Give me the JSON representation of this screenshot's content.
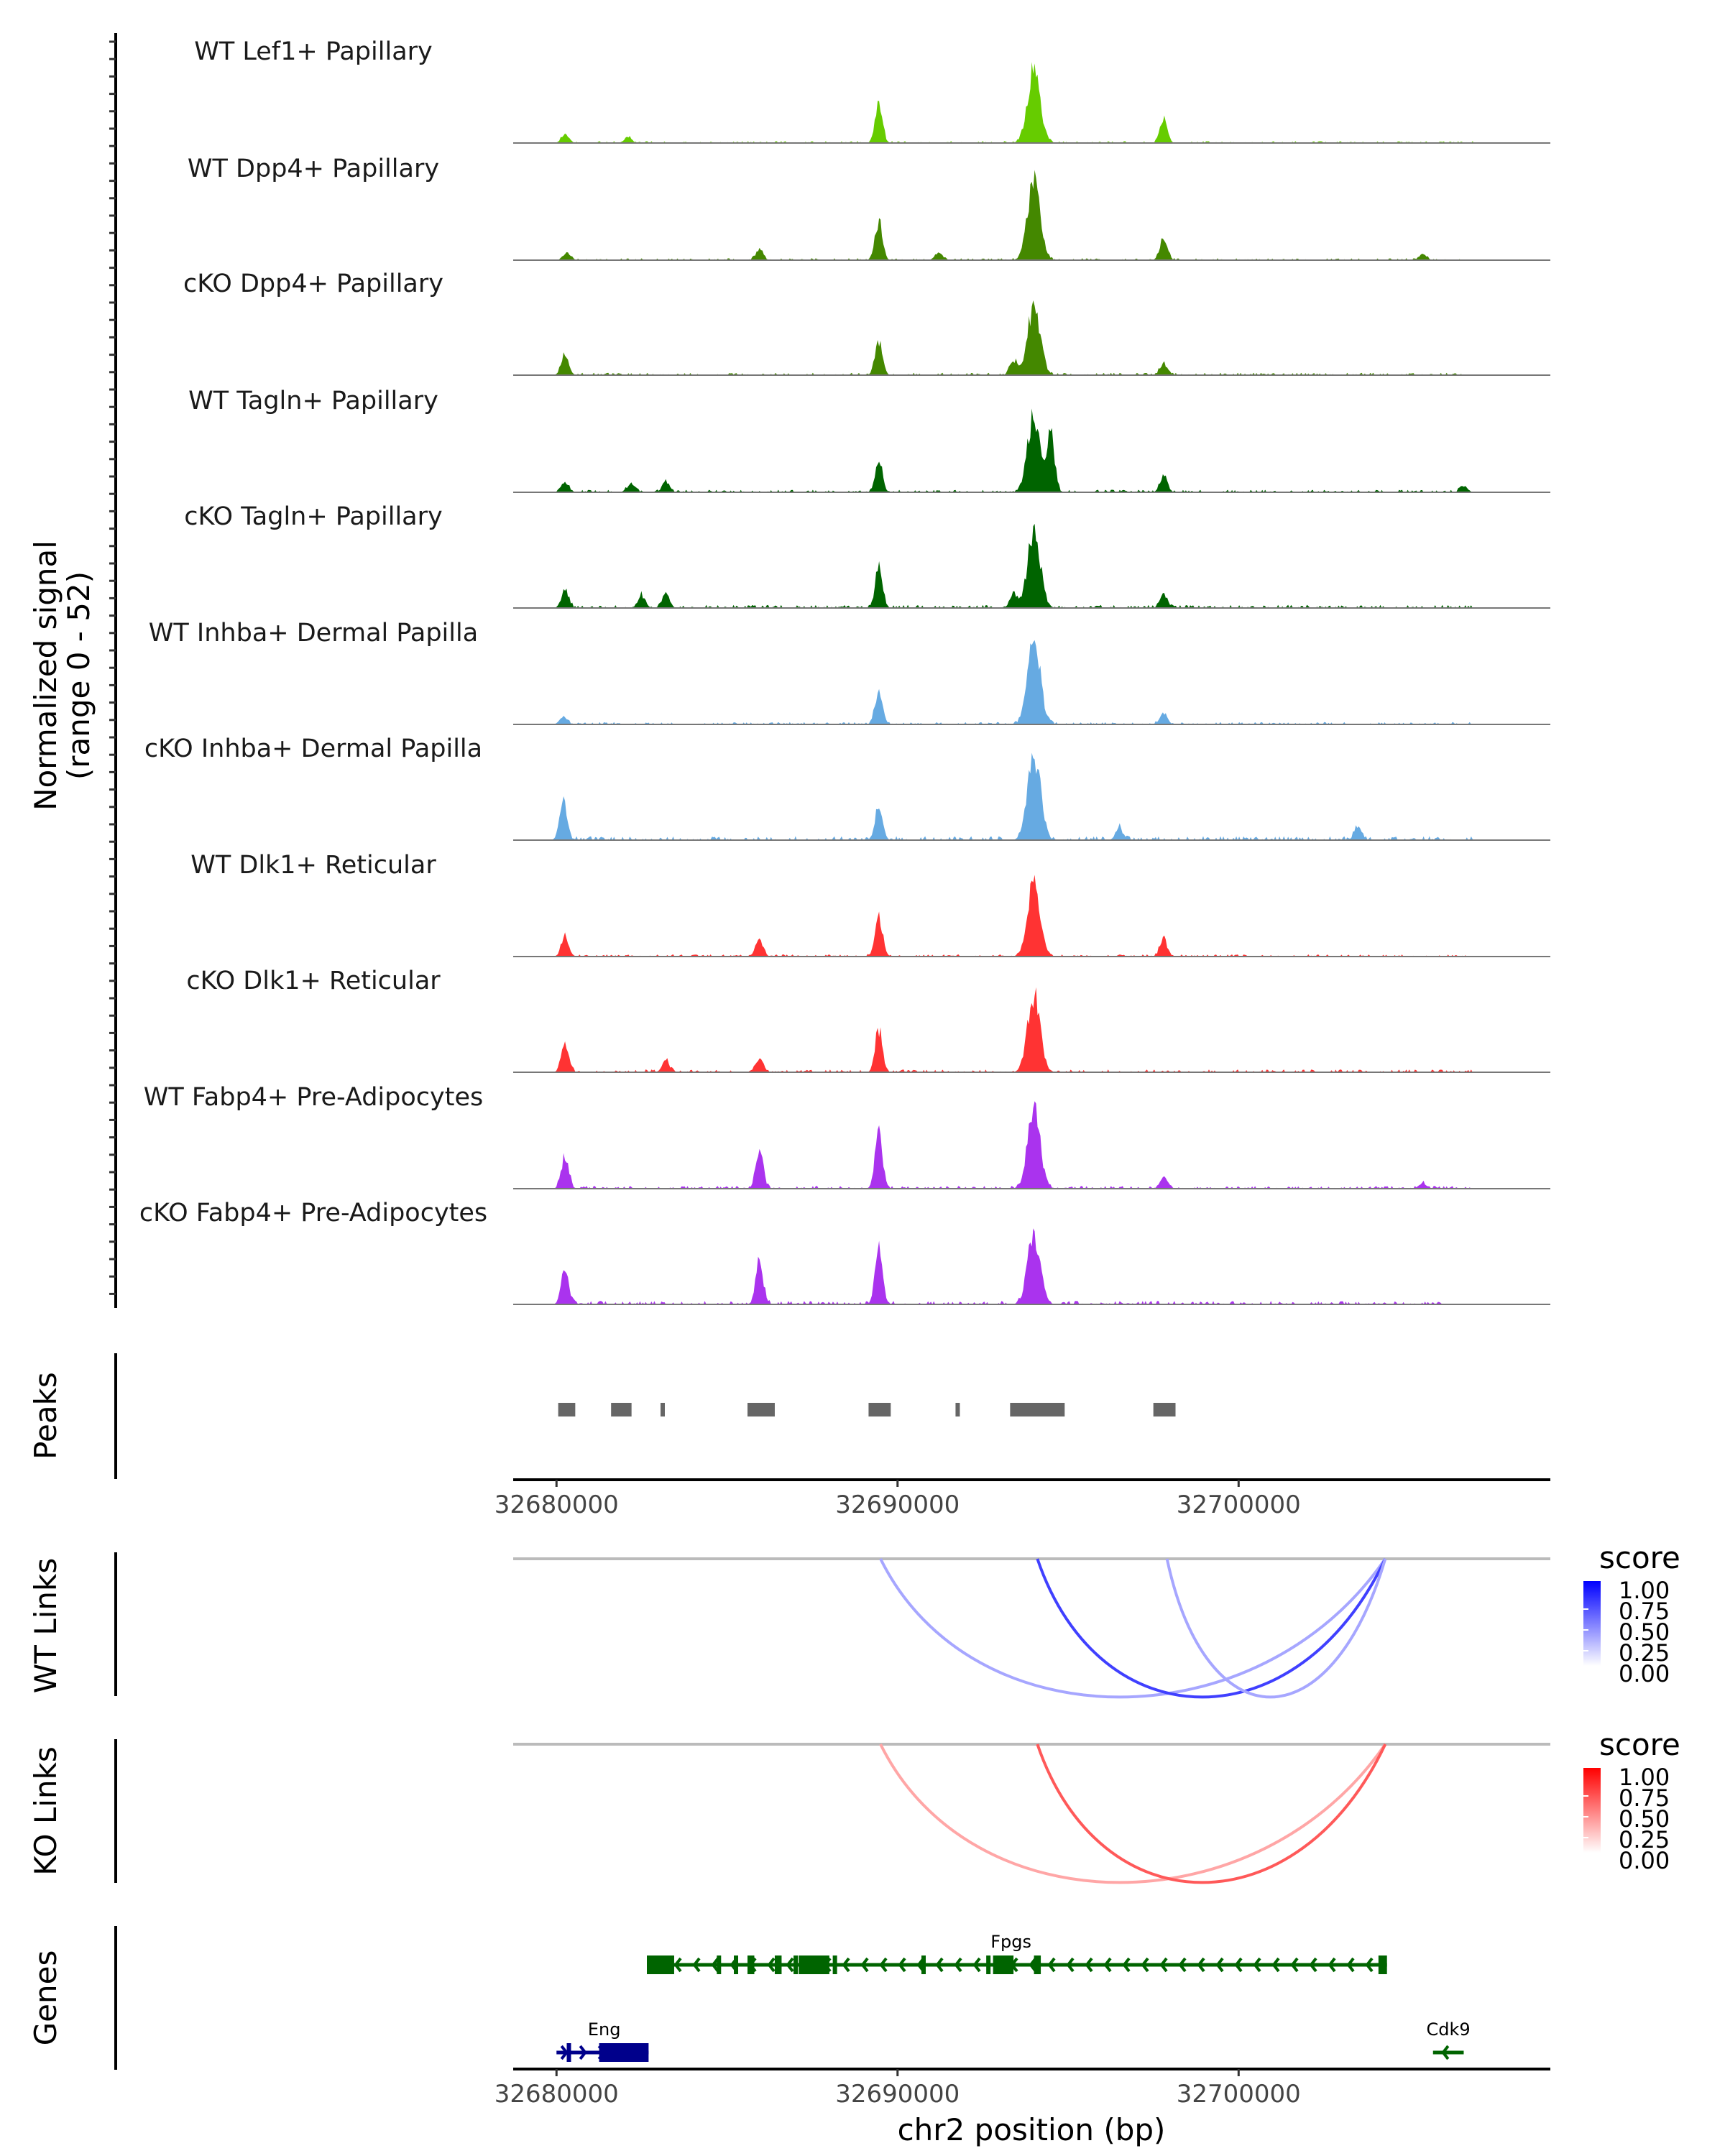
{
  "chart_data": {
    "type": "area",
    "title": "",
    "ylabel": "Normalized signal\n(range 0 - 52)",
    "ylabel_lines": [
      "Normalized signal",
      "(range 0 - 52)"
    ],
    "xlabel": "chr2 position (bp)",
    "xlim": [
      32678730,
      32709140
    ],
    "ylim": [
      0,
      52
    ],
    "x_ticks": [
      32680000,
      32690000,
      32700000
    ],
    "x_tick_labels": [
      "32680000",
      "32690000",
      "32700000"
    ],
    "coverage_tracks": [
      {
        "name": "WT Lef1+ Papillary",
        "color": "#66CC00",
        "peaks": [
          [
            32680250,
            6
          ],
          [
            32682100,
            4
          ],
          [
            32689450,
            26
          ],
          [
            32694000,
            50
          ],
          [
            32697800,
            16
          ]
        ],
        "noise": 1.2
      },
      {
        "name": "WT Dpp4+ Papillary",
        "color": "#448800",
        "peaks": [
          [
            32680300,
            5
          ],
          [
            32685950,
            7
          ],
          [
            32689450,
            26
          ],
          [
            32691200,
            5
          ],
          [
            32694000,
            52
          ],
          [
            32697800,
            16
          ],
          [
            32705400,
            4
          ]
        ],
        "noise": 1.2
      },
      {
        "name": "cKO Dpp4+ Papillary",
        "color": "#448800",
        "peaks": [
          [
            32680250,
            14
          ],
          [
            32689450,
            22
          ],
          [
            32693400,
            10
          ],
          [
            32694000,
            48
          ],
          [
            32697800,
            8
          ]
        ],
        "noise": 1.5
      },
      {
        "name": "WT Tagln+ Papillary",
        "color": "#006400",
        "peaks": [
          [
            32680250,
            7
          ],
          [
            32682200,
            6
          ],
          [
            32683200,
            7
          ],
          [
            32689450,
            20
          ],
          [
            32694000,
            52
          ],
          [
            32694500,
            40
          ],
          [
            32697800,
            11
          ],
          [
            32706600,
            4
          ]
        ],
        "noise": 1.6
      },
      {
        "name": "cKO Tagln+ Papillary",
        "color": "#006400",
        "peaks": [
          [
            32680250,
            12
          ],
          [
            32682500,
            8
          ],
          [
            32683200,
            10
          ],
          [
            32689450,
            26
          ],
          [
            32693400,
            10
          ],
          [
            32694000,
            52
          ],
          [
            32697800,
            10
          ]
        ],
        "noise": 2.0
      },
      {
        "name": "WT Inhba+ Dermal Papilla",
        "color": "#66AAE2",
        "peaks": [
          [
            32680200,
            5
          ],
          [
            32689450,
            24
          ],
          [
            32694000,
            58
          ],
          [
            32697800,
            8
          ]
        ],
        "noise": 1.5
      },
      {
        "name": "cKO Inhba+ Dermal Papilla",
        "color": "#66AAE2",
        "peaks": [
          [
            32680200,
            28
          ],
          [
            32689450,
            26
          ],
          [
            32694000,
            58
          ],
          [
            32696500,
            8
          ],
          [
            32703500,
            10
          ]
        ],
        "noise": 2.5
      },
      {
        "name": "WT Dlk1+ Reticular",
        "color": "#FF3333",
        "peaks": [
          [
            32680250,
            14
          ],
          [
            32685950,
            12
          ],
          [
            32689450,
            28
          ],
          [
            32694000,
            50
          ],
          [
            32697800,
            12
          ]
        ],
        "noise": 1.4
      },
      {
        "name": "cKO Dlk1+ Reticular",
        "color": "#FF3333",
        "peaks": [
          [
            32680250,
            18
          ],
          [
            32683200,
            8
          ],
          [
            32685950,
            10
          ],
          [
            32689450,
            28
          ],
          [
            32694000,
            52
          ]
        ],
        "noise": 1.8
      },
      {
        "name": "WT Fabp4+ Pre-Adipocytes",
        "color": "#AA33EE",
        "peaks": [
          [
            32680250,
            22
          ],
          [
            32685950,
            28
          ],
          [
            32689450,
            40
          ],
          [
            32694000,
            52
          ],
          [
            32697800,
            8
          ],
          [
            32705400,
            4
          ]
        ],
        "noise": 1.8
      },
      {
        "name": "cKO Fabp4+ Pre-Adipocytes",
        "color": "#AA33EE",
        "peaks": [
          [
            32680250,
            24
          ],
          [
            32685950,
            30
          ],
          [
            32689450,
            38
          ],
          [
            32694000,
            48
          ]
        ],
        "noise": 2.2
      }
    ],
    "peaks_track": {
      "label": "Peaks",
      "color": "#666666",
      "regions": [
        [
          32680050,
          32680550
        ],
        [
          32681600,
          32682200
        ],
        [
          32683050,
          32683150
        ],
        [
          32685600,
          32686400
        ],
        [
          32689150,
          32689800
        ],
        [
          32691700,
          32691800
        ],
        [
          32693300,
          32694900
        ],
        [
          32697500,
          32698150
        ]
      ]
    },
    "links": [
      {
        "label": "WT Links",
        "palette": "blue",
        "arcs": [
          {
            "start": 32689500,
            "end": 32704300,
            "score": 0.35
          },
          {
            "start": 32694100,
            "end": 32704300,
            "score": 0.75
          },
          {
            "start": 32697900,
            "end": 32704300,
            "score": 0.35
          }
        ]
      },
      {
        "label": "KO Links",
        "palette": "red",
        "arcs": [
          {
            "start": 32689500,
            "end": 32704300,
            "score": 0.35
          },
          {
            "start": 32694100,
            "end": 32704300,
            "score": 0.65
          }
        ]
      }
    ],
    "legends": [
      {
        "title": "score",
        "low": "#FFFFFF",
        "high": "#0000FF",
        "labels": [
          "1.00",
          "0.75",
          "0.50",
          "0.25",
          "0.00"
        ],
        "range": [
          0,
          1
        ]
      },
      {
        "title": "score",
        "low": "#FFFFFF",
        "high": "#FF0000",
        "labels": [
          "1.00",
          "0.75",
          "0.50",
          "0.25",
          "0.00"
        ],
        "range": [
          0,
          1
        ]
      }
    ],
    "genes_track": {
      "label": "Genes",
      "genes": [
        {
          "name": "Fpgs",
          "strand": "-",
          "start": 32682650,
          "end": 32704350,
          "color": "#006400",
          "row": 0,
          "exons": [
            [
              32682650,
              32683450
            ],
            [
              32684700,
              32684800
            ],
            [
              32685200,
              32685300
            ],
            [
              32685600,
              32685800
            ],
            [
              32686400,
              32686600
            ],
            [
              32686950,
              32687050
            ],
            [
              32687100,
              32688000
            ],
            [
              32688100,
              32688200
            ],
            [
              32690700,
              32690750
            ],
            [
              32692600,
              32692700
            ],
            [
              32692800,
              32693400
            ],
            [
              32694000,
              32694200
            ],
            [
              32704100,
              32704350
            ]
          ]
        },
        {
          "name": "Eng",
          "strand": "+",
          "start": 32680000,
          "end": 32682700,
          "color": "#00008B",
          "row": 1,
          "exons": [
            [
              32680300,
              32680380
            ],
            [
              32681250,
              32682700
            ]
          ]
        },
        {
          "name": "Cdk9",
          "strand": "-",
          "start": 32705700,
          "end": 32706600,
          "color": "#006400",
          "row": 1,
          "exons": []
        }
      ]
    }
  }
}
